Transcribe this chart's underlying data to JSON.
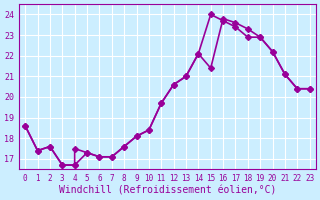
{
  "bg_color": "#cceeff",
  "grid_color": "#ffffff",
  "line_color": "#990099",
  "marker": "D",
  "markersize": 3,
  "linewidth": 1.2,
  "xlabel": "Windchill (Refroidissement éolien,°C)",
  "xlabel_fontsize": 7,
  "ylabel_ticks": [
    17,
    18,
    19,
    20,
    21,
    22,
    23,
    24
  ],
  "xtick_labels": [
    "0",
    "1",
    "2",
    "3",
    "4",
    "5",
    "6",
    "7",
    "8",
    "9",
    "10",
    "11",
    "12",
    "13",
    "14",
    "15",
    "16",
    "17",
    "18",
    "19",
    "20",
    "21",
    "22",
    "23"
  ],
  "xlim": [
    -0.5,
    23.5
  ],
  "ylim": [
    16.5,
    24.5
  ],
  "series1_x": [
    0,
    1,
    2,
    3,
    4,
    5,
    6,
    7,
    8,
    9,
    10,
    11,
    12,
    13,
    14,
    15,
    16,
    17,
    18,
    19,
    20,
    21,
    22,
    23
  ],
  "series1_y": [
    18.6,
    17.4,
    17.6,
    16.7,
    16.7,
    17.3,
    17.1,
    17.1,
    17.6,
    18.1,
    18.4,
    19.7,
    20.6,
    21.0,
    22.1,
    24.0,
    23.7,
    23.4,
    22.9,
    22.9,
    22.2,
    21.1,
    20.4,
    20.4
  ],
  "series2_x": [
    0,
    1,
    2,
    3,
    4,
    4,
    5,
    6,
    7,
    8,
    9,
    10,
    11,
    12,
    13,
    14,
    15,
    16,
    17,
    18,
    19,
    20,
    21,
    22,
    23
  ],
  "series2_y": [
    18.6,
    17.4,
    17.6,
    16.7,
    16.7,
    17.5,
    17.3,
    17.1,
    17.1,
    17.6,
    18.1,
    18.4,
    19.7,
    20.6,
    21.0,
    22.1,
    21.4,
    23.8,
    23.6,
    23.3,
    22.9,
    22.2,
    21.1,
    20.4,
    20.4
  ]
}
